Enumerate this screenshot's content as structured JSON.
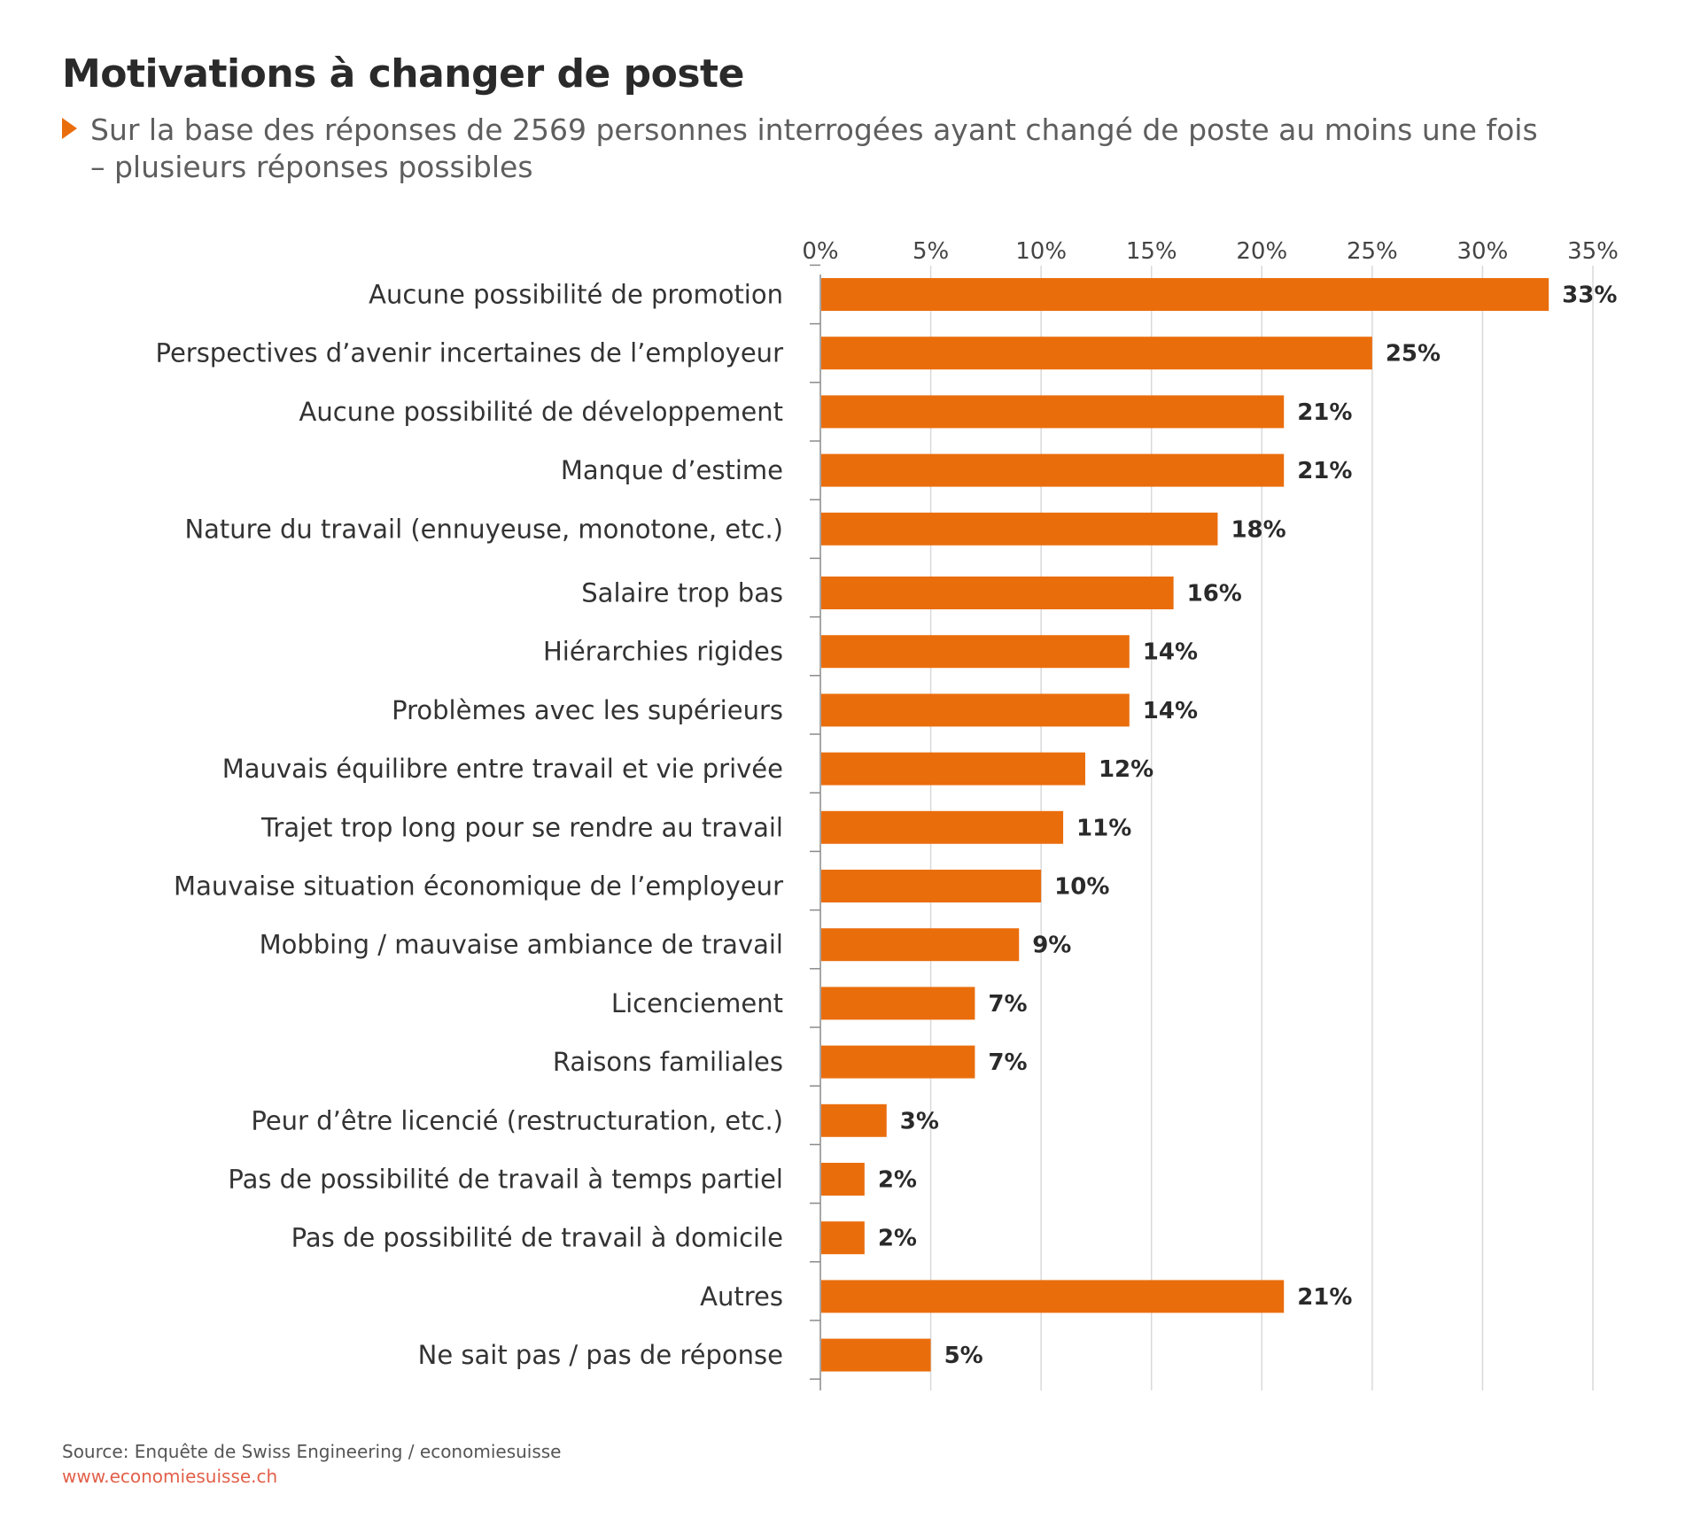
{
  "chart_data": {
    "type": "bar",
    "orientation": "horizontal",
    "title": "Motivations à changer de poste",
    "subtitle_lines": [
      "Sur la base des réponses de 2569 personnes interrogées ayant changé de poste au moins une fois",
      "– plusieurs réponses possibles"
    ],
    "categories": [
      "Aucune possibilité de promotion",
      "Perspectives d’avenir incertaines de l’employeur",
      "Aucune possibilité de développement",
      "Manque d’estime",
      "Nature du travail (ennuyeuse, monotone, etc.)",
      "Salaire trop bas",
      "Hiérarchies rigides",
      "Problèmes avec les supérieurs",
      "Mauvais équilibre entre travail et vie privée",
      "Trajet trop long pour se rendre au travail",
      "Mauvaise situation économique de l’employeur",
      "Mobbing / mauvaise ambiance de travail",
      "Licenciement",
      "Raisons familiales",
      "Peur d’être licencié (restructuration, etc.)",
      "Pas de possibilité de travail à temps partiel",
      "Pas de possibilité de travail à domicile",
      "Autres",
      "Ne sait pas / pas de réponse"
    ],
    "values": [
      33,
      25,
      21,
      21,
      18,
      16,
      14,
      14,
      12,
      11,
      10,
      9,
      7,
      7,
      3,
      2,
      2,
      21,
      5
    ],
    "value_labels": [
      "33%",
      "25%",
      "21%",
      "21%",
      "18%",
      "16%",
      "14%",
      "14%",
      "12%",
      "11%",
      "10%",
      "9%",
      "7%",
      "7%",
      "3%",
      "2%",
      "2%",
      "21%",
      "5%"
    ],
    "xlim": [
      0,
      35
    ],
    "xticks": [
      0,
      5,
      10,
      15,
      20,
      25,
      30,
      35
    ],
    "xtick_labels": [
      "0%",
      "5%",
      "10%",
      "15%",
      "20%",
      "25%",
      "30%",
      "35%"
    ],
    "x_axis_position": "top",
    "grid": true,
    "bar_color": "#ea6d0c",
    "grid_color": "#d9d9d9",
    "axis_color": "#8a8a8a"
  },
  "footer": {
    "source": "Source: Enquête de Swiss Engineering / economiesuisse",
    "url": "www.economiesuisse.ch"
  },
  "colors": {
    "accent": "#ea6d0c",
    "url": "#e2604a"
  }
}
